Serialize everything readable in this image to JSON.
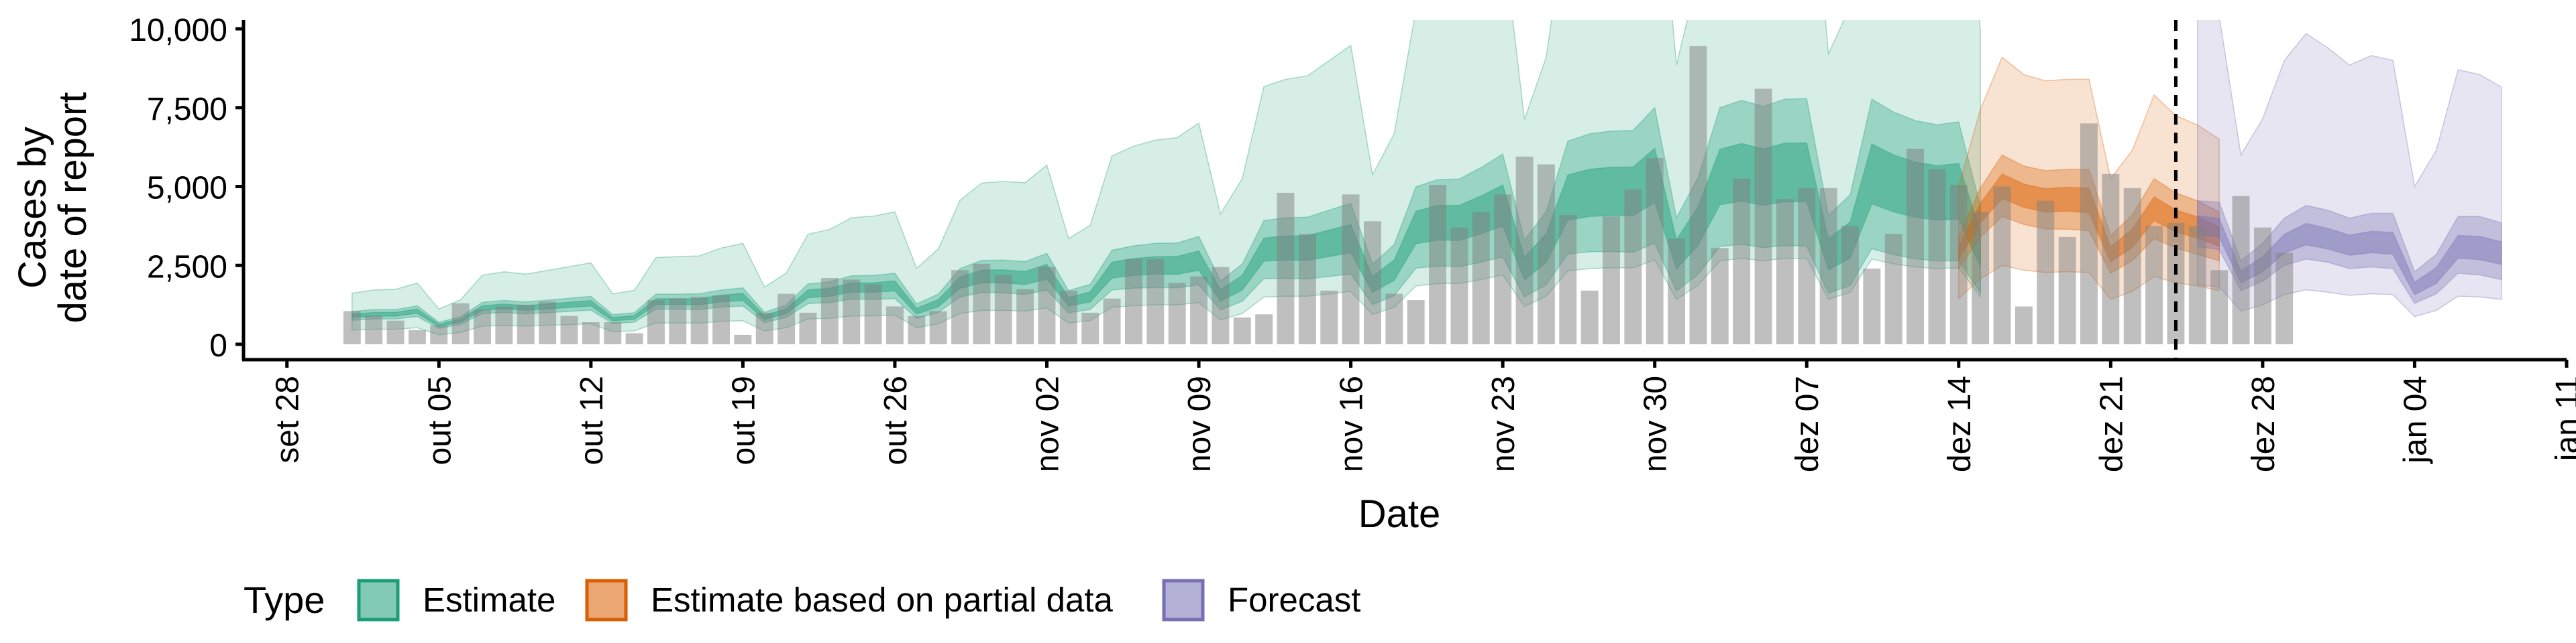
{
  "chart_data": {
    "type": "bar",
    "xlabel": "Date",
    "ylabel_lines": [
      "Cases by",
      "date of report"
    ],
    "ylim": [
      0,
      10000
    ],
    "yticks": [
      0,
      2500,
      5000,
      7500,
      10000
    ],
    "ytick_labels": [
      "0",
      "2,500",
      "5,000",
      "7,500",
      "10,000"
    ],
    "xlim": [
      "2020-09-26",
      "2021-01-11"
    ],
    "xticks": [
      "2020-09-28",
      "2020-10-05",
      "2020-10-12",
      "2020-10-19",
      "2020-10-26",
      "2020-11-02",
      "2020-11-09",
      "2020-11-16",
      "2020-11-23",
      "2020-11-30",
      "2020-12-07",
      "2020-12-14",
      "2020-12-21",
      "2020-12-28",
      "2021-01-04",
      "2021-01-11"
    ],
    "xtick_labels": [
      "set 28",
      "out 05",
      "out 12",
      "out 19",
      "out 26",
      "nov 02",
      "nov 09",
      "nov 16",
      "nov 23",
      "nov 30",
      "dez 07",
      "dez 14",
      "dez 21",
      "dez 28",
      "jan 04",
      "jan 11"
    ],
    "vline_date": "2020-12-24",
    "grid": false,
    "legend": {
      "position": "bottom",
      "title": "Type",
      "items": [
        {
          "label": "Estimate",
          "color": "#1b9e77"
        },
        {
          "label": "Estimate based on partial data",
          "color": "#d95f02"
        },
        {
          "label": "Forecast",
          "color": "#7570b3"
        }
      ]
    },
    "bars_start": "2020-10-01",
    "bars": [
      1050,
      900,
      750,
      450,
      600,
      1300,
      1100,
      1200,
      1250,
      1350,
      900,
      700,
      700,
      350,
      1400,
      1450,
      1500,
      1550,
      300,
      1000,
      1600,
      1000,
      2100,
      2050,
      1900,
      1200,
      900,
      1050,
      2350,
      2550,
      2200,
      1750,
      2450,
      1700,
      1000,
      1450,
      2700,
      2700,
      1950,
      2150,
      2450,
      850,
      950,
      4800,
      3500,
      1700,
      4750,
      3900,
      1600,
      1400,
      5050,
      3700,
      4200,
      4750,
      5950,
      5700,
      4100,
      1700,
      4050,
      4900,
      5900,
      3350,
      9450,
      3050,
      5250,
      8100,
      4600,
      4950,
      4950,
      3750,
      2400,
      3500,
      6200,
      5550,
      5050,
      4200,
      5000,
      1200,
      4550,
      3400,
      7000,
      5400,
      4950,
      3750,
      3850,
      3750,
      2350,
      4700,
      3700,
      2900
    ],
    "series": [
      {
        "name": "Estimate",
        "color": "#1b9e77",
        "start": "2020-10-01",
        "median": [
          900,
          950,
          950,
          1050,
          600,
          750,
          1150,
          1200,
          1150,
          1200,
          1250,
          1300,
          800,
          850,
          1350,
          1350,
          1350,
          1450,
          1500,
          850,
          1050,
          1600,
          1650,
          1800,
          1800,
          1850,
          1050,
          1300,
          1950,
          2150,
          2150,
          2100,
          2300,
          1350,
          1500,
          2350,
          2450,
          2500,
          2500,
          2650,
          1550,
          1950,
          3000,
          3050,
          3050,
          3200,
          3350,
          1900,
          2350,
          3700,
          3850,
          3850,
          4100,
          4400,
          2400,
          3050,
          4650,
          4800,
          4850,
          4850,
          5350,
          2850,
          3750,
          5300,
          5450,
          5300,
          5450,
          5450,
          2850,
          3300,
          5400,
          5100,
          4900,
          4800,
          4850,
          3000
        ],
        "p25": [
          760,
          800,
          800,
          880,
          500,
          630,
          970,
          1010,
          960,
          1000,
          1040,
          1080,
          660,
          700,
          1110,
          1110,
          1100,
          1180,
          1210,
          690,
          850,
          1290,
          1320,
          1430,
          1420,
          1450,
          820,
          1010,
          1500,
          1640,
          1630,
          1580,
          1720,
          1000,
          1100,
          1720,
          1780,
          1800,
          1790,
          1880,
          1090,
          1360,
          2080,
          2090,
          2070,
          2150,
          2230,
          1260,
          1540,
          2410,
          2480,
          2460,
          2600,
          2770,
          1500,
          1890,
          2860,
          2930,
          2940,
          2920,
          3200,
          1690,
          2210,
          3100,
          3170,
          3060,
          3130,
          3110,
          1620,
          1860,
          3030,
          2840,
          2710,
          2640,
          2650,
          1630
        ],
        "p75": [
          1040,
          1100,
          1100,
          1220,
          700,
          870,
          1330,
          1390,
          1340,
          1400,
          1460,
          1520,
          940,
          1000,
          1590,
          1590,
          1600,
          1720,
          1790,
          1010,
          1250,
          1910,
          1980,
          2170,
          2180,
          2250,
          1280,
          1590,
          2400,
          2660,
          2670,
          2620,
          2880,
          1700,
          1900,
          2980,
          3120,
          3200,
          3210,
          3420,
          2010,
          2540,
          3920,
          4010,
          4030,
          4250,
          4470,
          2540,
          3160,
          4990,
          5220,
          5240,
          5600,
          6030,
          3300,
          4210,
          6440,
          6670,
          6760,
          6780,
          7500,
          4010,
          5290,
          7500,
          7730,
          7540,
          7770,
          7790,
          4080,
          4740,
          7770,
          7360,
          7090,
          6960,
          7050,
          4370
        ],
        "p05": [
          450,
          475,
          475,
          525,
          300,
          375,
          575,
          600,
          575,
          600,
          625,
          650,
          400,
          425,
          675,
          675,
          675,
          725,
          750,
          425,
          525,
          800,
          825,
          900,
          900,
          925,
          525,
          650,
          975,
          1075,
          1075,
          1050,
          1150,
          675,
          750,
          1175,
          1225,
          1250,
          1250,
          1325,
          775,
          975,
          1500,
          1525,
          1525,
          1600,
          1675,
          950,
          1175,
          1850,
          1925,
          1925,
          2050,
          2200,
          1200,
          1525,
          2325,
          2400,
          2425,
          2425,
          2675,
          1425,
          1875,
          2650,
          2725,
          2650,
          2725,
          2725,
          1425,
          1650,
          2700,
          2550,
          2450,
          2400,
          2425,
          1500
        ],
        "p95": [
          1620,
          1720,
          1740,
          1940,
          1120,
          1410,
          2190,
          2300,
          2220,
          2340,
          2460,
          2580,
          1600,
          1710,
          2750,
          2780,
          2800,
          3050,
          3200,
          1810,
          2260,
          3490,
          3640,
          4010,
          4060,
          4200,
          2410,
          3020,
          4560,
          5110,
          5160,
          5120,
          5680,
          3350,
          3770,
          5970,
          6280,
          6470,
          6550,
          7010,
          4130,
          5250,
          8170,
          8400,
          8510,
          8990,
          9480,
          5370,
          6680,
          10610,
          11120,
          11190,
          12010,
          13000,
          7130,
          9100,
          13950,
          14490,
          14740,
          14840,
          16500,
          8850,
          11750,
          16700,
          17240,
          16860,
          17430,
          17510,
          9200,
          10710,
          17600,
          16710,
          16120,
          15840,
          16090,
          9970
        ]
      },
      {
        "name": "Estimate based on partial data",
        "color": "#d95f02",
        "start": "2020-12-14",
        "median": [
          2900,
          4150,
          5000,
          4700,
          4550,
          4600,
          4550,
          2850,
          3350,
          4300,
          3900,
          3700,
          3400
        ],
        "p25": [
          2400,
          3400,
          4050,
          3800,
          3650,
          3650,
          3600,
          2250,
          2650,
          3350,
          3050,
          2850,
          2650
        ],
        "p75": [
          3400,
          4950,
          6000,
          5650,
          5500,
          5550,
          5550,
          3450,
          4100,
          5250,
          4800,
          4550,
          4200
        ],
        "p05": [
          1450,
          2075,
          2500,
          2350,
          2275,
          2300,
          2275,
          1425,
          1675,
          2150,
          1950,
          1850,
          1700
        ],
        "p95": [
          5000,
          7450,
          9100,
          8550,
          8350,
          8400,
          8400,
          5250,
          6150,
          7900,
          7250,
          6950,
          6500
        ]
      },
      {
        "name": "Forecast",
        "color": "#7570b3",
        "start": "2020-12-25",
        "median": [
          3750,
          3650,
          2100,
          2500,
          3150,
          3450,
          3300,
          3100,
          3200,
          3150,
          1750,
          2150,
          3050,
          3000,
          2850
        ],
        "p25": [
          3100,
          3000,
          1700,
          2000,
          2500,
          2700,
          2600,
          2400,
          2450,
          2400,
          1300,
          1600,
          2250,
          2200,
          2050
        ],
        "p75": [
          4550,
          4500,
          2650,
          3200,
          4000,
          4400,
          4250,
          4000,
          4150,
          4150,
          2300,
          2850,
          4050,
          4050,
          3850
        ],
        "p05": [
          1875,
          1825,
          1050,
          1250,
          1575,
          1725,
          1650,
          1550,
          1600,
          1575,
          875,
          1075,
          1525,
          1500,
          1425
        ],
        "p95": [
          10800,
          10400,
          6000,
          7150,
          9000,
          9850,
          9400,
          8850,
          9150,
          9000,
          5000,
          6150,
          8700,
          8550,
          8150
        ]
      }
    ]
  }
}
